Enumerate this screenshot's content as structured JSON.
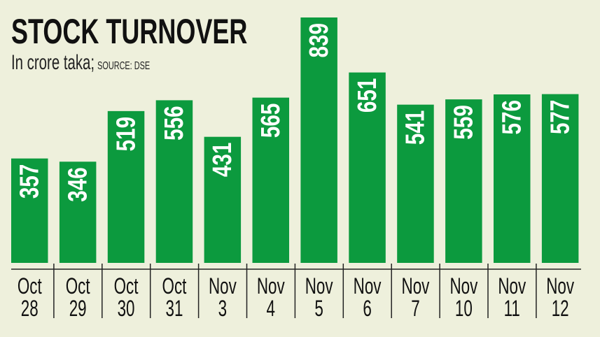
{
  "chart_data": {
    "type": "bar",
    "title": "STOCK TURNOVER",
    "subtitle": "In crore taka;",
    "source": "SOURCE: DSE",
    "categories": [
      [
        "Oct",
        "28"
      ],
      [
        "Oct",
        "29"
      ],
      [
        "Oct",
        "30"
      ],
      [
        "Oct",
        "31"
      ],
      [
        "Nov",
        "3"
      ],
      [
        "Nov",
        "4"
      ],
      [
        "Nov",
        "5"
      ],
      [
        "Nov",
        "6"
      ],
      [
        "Nov",
        "7"
      ],
      [
        "Nov",
        "10"
      ],
      [
        "Nov",
        "11"
      ],
      [
        "Nov",
        "12"
      ]
    ],
    "values": [
      357,
      346,
      519,
      556,
      431,
      565,
      839,
      651,
      541,
      559,
      576,
      577
    ],
    "ylim": [
      0,
      839
    ],
    "grid": false,
    "bar_color": "#0c9a3e",
    "label_color": "#ffffff",
    "background": "#eef0dc"
  }
}
